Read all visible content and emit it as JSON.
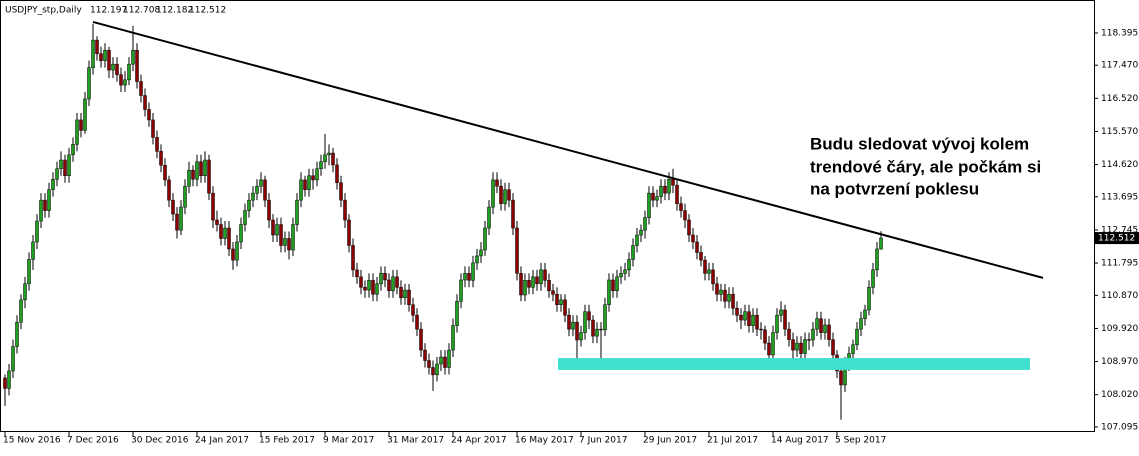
{
  "chart_data": {
    "type": "candlestick",
    "title": "USDJPY_stp,Daily",
    "ylim": [
      106.95,
      119.34
    ],
    "yticks": [
      118.395,
      {
        "value": 117.47,
        "label": "117.470"
      },
      {
        "value": 116.52,
        "label": "116.520"
      },
      {
        "value": 115.57,
        "label": "115.570"
      },
      {
        "value": 114.62,
        "label": "114.620"
      },
      113.695,
      112.745,
      111.795,
      {
        "value": 110.87,
        "label": "110.870"
      },
      {
        "value": 109.92,
        "label": "109.920"
      },
      {
        "value": 108.97,
        "label": "108.970"
      },
      {
        "value": 108.02,
        "label": "108.020"
      },
      107.095
    ],
    "x_labels": [
      "15 Nov 2016",
      "7 Dec 2016",
      "30 Dec 2016",
      "24 Jan 2017",
      "15 Feb 2017",
      "9 Mar 2017",
      "31 Mar 2017",
      "24 Apr 2017",
      "16 May 2017",
      "7 Jun 2017",
      "29 Jun 2017",
      "21 Jul 2017",
      "14 Aug 2017",
      "5 Sep 2017"
    ],
    "up_color": "#1f9e1f",
    "down_color": "#8b0000",
    "line_color": "#000000",
    "trendline": [
      118.71,
      111.37
    ],
    "support_zone": {
      "range": [
        108.73,
        109.07
      ],
      "color": "#40e0d0"
    },
    "annotation": [
      "Budu sledovat vývoj kolem",
      "trendové čáry, ale počkám si",
      "na potvrzení poklesu"
    ],
    "ohlc": [
      [
        108.5,
        108.6,
        107.7,
        108.2
      ],
      [
        108.2,
        108.9,
        108.0,
        108.7
      ],
      [
        108.7,
        109.6,
        108.5,
        109.4
      ],
      [
        109.4,
        110.3,
        109.2,
        110.1
      ],
      [
        110.1,
        110.9,
        109.9,
        110.74
      ],
      [
        110.74,
        111.4,
        110.5,
        111.2
      ],
      [
        111.2,
        112.1,
        111.0,
        111.9
      ],
      [
        111.9,
        112.6,
        111.6,
        112.4
      ],
      [
        112.4,
        113.2,
        112.2,
        113.0
      ],
      [
        113.0,
        113.8,
        112.8,
        113.6
      ],
      [
        113.6,
        113.8,
        113.1,
        113.3
      ],
      [
        113.3,
        114.1,
        113.1,
        113.9
      ],
      [
        113.9,
        114.4,
        113.7,
        114.2
      ],
      [
        114.2,
        114.7,
        114.0,
        114.5
      ],
      [
        114.5,
        115.0,
        114.3,
        114.75
      ],
      [
        114.75,
        114.9,
        114.1,
        114.3
      ],
      [
        114.3,
        115.1,
        114.1,
        114.9
      ],
      [
        114.9,
        115.4,
        114.7,
        115.2
      ],
      [
        115.2,
        116.1,
        115.0,
        115.9
      ],
      [
        115.9,
        116.1,
        115.4,
        115.6
      ],
      [
        115.6,
        116.7,
        115.5,
        116.5
      ],
      [
        116.5,
        117.6,
        116.3,
        117.4
      ],
      [
        117.4,
        118.66,
        117.2,
        118.19
      ],
      [
        118.19,
        118.3,
        117.6,
        117.8
      ],
      [
        117.8,
        118.0,
        117.4,
        117.6
      ],
      [
        117.6,
        118.1,
        117.4,
        117.9
      ],
      [
        117.9,
        118.0,
        117.1,
        117.33
      ],
      [
        117.33,
        117.7,
        117.1,
        117.5
      ],
      [
        117.5,
        117.7,
        117.0,
        117.2
      ],
      [
        117.2,
        117.4,
        116.7,
        116.9
      ],
      [
        116.9,
        117.3,
        116.7,
        117.05
      ],
      [
        117.05,
        117.7,
        116.9,
        117.5
      ],
      [
        117.5,
        118.6,
        117.3,
        117.9
      ],
      [
        117.9,
        118.1,
        116.8,
        117.0
      ],
      [
        117.0,
        117.2,
        116.4,
        116.6
      ],
      [
        116.6,
        116.8,
        116.0,
        116.2
      ],
      [
        116.2,
        116.4,
        115.7,
        115.9
      ],
      [
        115.9,
        116.1,
        115.2,
        115.4
      ],
      [
        115.4,
        115.6,
        114.8,
        115.0
      ],
      [
        115.0,
        115.2,
        114.4,
        114.6
      ],
      [
        114.6,
        114.8,
        114.0,
        114.18
      ],
      [
        114.18,
        114.3,
        113.4,
        113.6
      ],
      [
        113.6,
        113.8,
        113.0,
        113.2
      ],
      [
        113.2,
        113.4,
        112.5,
        112.74
      ],
      [
        112.74,
        113.6,
        112.6,
        113.4
      ],
      [
        113.4,
        114.2,
        113.2,
        114.0
      ],
      [
        114.0,
        114.7,
        113.8,
        114.46
      ],
      [
        114.46,
        114.6,
        114.0,
        114.2
      ],
      [
        114.2,
        114.9,
        114.0,
        114.7
      ],
      [
        114.7,
        114.9,
        114.1,
        114.3
      ],
      [
        114.3,
        115.0,
        114.1,
        114.75
      ],
      [
        114.75,
        114.9,
        113.6,
        113.8
      ],
      [
        113.8,
        114.0,
        112.8,
        113.03
      ],
      [
        113.03,
        113.3,
        112.7,
        112.9
      ],
      [
        112.9,
        113.1,
        112.3,
        112.5
      ],
      [
        112.5,
        113.0,
        112.3,
        112.8
      ],
      [
        112.8,
        113.0,
        112.0,
        112.2
      ],
      [
        112.2,
        112.4,
        111.6,
        111.88
      ],
      [
        111.88,
        112.6,
        111.7,
        112.4
      ],
      [
        112.4,
        113.1,
        112.2,
        112.9
      ],
      [
        112.9,
        113.5,
        112.7,
        113.3
      ],
      [
        113.3,
        113.8,
        113.1,
        113.6
      ],
      [
        113.6,
        114.0,
        113.4,
        113.8
      ],
      [
        113.8,
        114.2,
        113.6,
        114.0
      ],
      [
        114.0,
        114.4,
        113.8,
        114.18
      ],
      [
        114.18,
        114.3,
        113.4,
        113.6
      ],
      [
        113.6,
        113.8,
        112.8,
        113.03
      ],
      [
        113.03,
        113.2,
        112.4,
        112.6
      ],
      [
        112.6,
        113.1,
        112.4,
        112.9
      ],
      [
        112.9,
        113.1,
        112.1,
        112.3
      ],
      [
        112.3,
        112.7,
        112.1,
        112.5
      ],
      [
        112.5,
        112.7,
        111.9,
        112.17
      ],
      [
        112.17,
        113.1,
        112.0,
        112.9
      ],
      [
        112.9,
        113.8,
        112.7,
        113.6
      ],
      [
        113.6,
        114.4,
        113.4,
        114.18
      ],
      [
        114.18,
        114.3,
        113.7,
        113.9
      ],
      [
        113.9,
        114.5,
        113.7,
        114.3
      ],
      [
        114.3,
        114.5,
        113.9,
        114.18
      ],
      [
        114.18,
        114.7,
        114.0,
        114.5
      ],
      [
        114.5,
        114.9,
        114.3,
        114.7
      ],
      [
        114.7,
        115.5,
        114.5,
        114.9
      ],
      [
        114.9,
        115.2,
        114.6,
        114.95
      ],
      [
        114.95,
        115.1,
        114.4,
        114.61
      ],
      [
        114.61,
        114.8,
        113.9,
        114.1
      ],
      [
        114.1,
        114.3,
        113.4,
        113.6
      ],
      [
        113.6,
        113.8,
        112.8,
        113.03
      ],
      [
        113.03,
        113.2,
        112.1,
        112.3
      ],
      [
        112.3,
        112.5,
        111.4,
        111.6
      ],
      [
        111.6,
        111.8,
        111.2,
        111.4
      ],
      [
        111.4,
        111.6,
        110.9,
        111.1
      ],
      [
        111.1,
        111.3,
        110.8,
        111.02
      ],
      [
        111.02,
        111.5,
        110.8,
        111.3
      ],
      [
        111.3,
        111.5,
        110.7,
        110.9
      ],
      [
        110.9,
        111.4,
        110.7,
        111.2
      ],
      [
        111.2,
        111.7,
        111.0,
        111.5
      ],
      [
        111.5,
        111.7,
        111.1,
        111.31
      ],
      [
        111.31,
        111.5,
        110.8,
        111.0
      ],
      [
        111.0,
        111.6,
        110.8,
        111.4
      ],
      [
        111.4,
        111.6,
        110.9,
        111.1
      ],
      [
        111.1,
        111.3,
        110.6,
        110.8
      ],
      [
        110.8,
        111.2,
        110.6,
        111.02
      ],
      [
        111.02,
        111.2,
        110.4,
        110.6
      ],
      [
        110.6,
        110.8,
        110.1,
        110.3
      ],
      [
        110.3,
        110.5,
        109.7,
        109.9
      ],
      [
        109.9,
        110.1,
        109.1,
        109.3
      ],
      [
        109.3,
        109.5,
        108.8,
        109.0
      ],
      [
        109.0,
        109.2,
        108.6,
        108.8
      ],
      [
        108.8,
        109.0,
        108.13,
        108.59
      ],
      [
        108.59,
        109.1,
        108.4,
        108.9
      ],
      [
        108.9,
        109.3,
        108.7,
        109.1
      ],
      [
        109.1,
        109.3,
        108.6,
        108.8
      ],
      [
        108.8,
        109.5,
        108.6,
        109.3
      ],
      [
        109.3,
        110.2,
        109.1,
        110.0
      ],
      [
        110.0,
        110.9,
        109.8,
        110.7
      ],
      [
        110.7,
        111.5,
        110.5,
        111.31
      ],
      [
        111.31,
        111.7,
        111.1,
        111.5
      ],
      [
        111.5,
        111.7,
        111.1,
        111.3
      ],
      [
        111.3,
        112.0,
        111.1,
        111.8
      ],
      [
        111.8,
        112.2,
        111.6,
        112.0
      ],
      [
        112.0,
        112.4,
        111.8,
        112.17
      ],
      [
        112.17,
        113.0,
        112.0,
        112.8
      ],
      [
        112.8,
        113.6,
        112.6,
        113.4
      ],
      [
        113.4,
        114.4,
        113.2,
        114.18
      ],
      [
        114.18,
        114.4,
        113.8,
        114.0
      ],
      [
        114.0,
        114.2,
        113.3,
        113.5
      ],
      [
        113.5,
        114.1,
        113.3,
        113.9
      ],
      [
        113.9,
        114.1,
        113.4,
        113.6
      ],
      [
        113.6,
        113.8,
        112.6,
        112.8
      ],
      [
        112.8,
        113.0,
        111.3,
        111.5
      ],
      [
        111.5,
        111.7,
        110.7,
        110.88
      ],
      [
        110.88,
        111.5,
        110.7,
        111.3
      ],
      [
        111.3,
        111.5,
        110.9,
        111.1
      ],
      [
        111.1,
        111.6,
        110.9,
        111.4
      ],
      [
        111.4,
        111.6,
        111.0,
        111.2
      ],
      [
        111.2,
        111.8,
        111.0,
        111.6
      ],
      [
        111.6,
        111.8,
        111.1,
        111.3
      ],
      [
        111.3,
        111.5,
        110.8,
        111.0
      ],
      [
        111.0,
        111.2,
        110.7,
        110.9
      ],
      [
        110.9,
        111.1,
        110.4,
        110.6
      ],
      [
        110.6,
        110.9,
        110.4,
        110.74
      ],
      [
        110.74,
        110.9,
        110.1,
        110.3
      ],
      [
        110.3,
        110.5,
        109.7,
        109.9
      ],
      [
        109.9,
        110.3,
        109.7,
        110.1
      ],
      [
        110.1,
        110.3,
        109.0,
        109.59
      ],
      [
        109.59,
        110.0,
        109.4,
        109.8
      ],
      [
        109.8,
        110.6,
        109.6,
        110.4
      ],
      [
        110.4,
        110.6,
        109.9,
        110.16
      ],
      [
        110.16,
        110.3,
        109.5,
        109.7
      ],
      [
        109.7,
        110.1,
        109.5,
        109.9
      ],
      [
        109.9,
        110.1,
        108.95,
        109.88
      ],
      [
        109.88,
        110.8,
        109.7,
        110.6
      ],
      [
        110.6,
        111.5,
        110.4,
        111.31
      ],
      [
        111.31,
        111.5,
        110.8,
        111.0
      ],
      [
        111.0,
        111.6,
        110.8,
        111.4
      ],
      [
        111.4,
        111.7,
        111.2,
        111.5
      ],
      [
        111.5,
        111.8,
        111.3,
        111.6
      ],
      [
        111.6,
        112.1,
        111.4,
        111.9
      ],
      [
        111.9,
        112.5,
        111.7,
        112.3
      ],
      [
        112.3,
        112.8,
        112.1,
        112.6
      ],
      [
        112.6,
        112.9,
        112.4,
        112.74
      ],
      [
        112.74,
        113.3,
        112.5,
        113.1
      ],
      [
        113.1,
        114.0,
        112.9,
        113.8
      ],
      [
        113.8,
        114.0,
        113.4,
        113.6
      ],
      [
        113.6,
        113.9,
        113.4,
        113.7
      ],
      [
        113.7,
        114.2,
        113.5,
        114.0
      ],
      [
        114.0,
        114.2,
        113.6,
        113.8
      ],
      [
        113.8,
        114.4,
        113.6,
        114.2
      ],
      [
        114.2,
        114.5,
        113.8,
        114.03
      ],
      [
        114.03,
        114.2,
        113.3,
        113.5
      ],
      [
        113.5,
        113.7,
        113.1,
        113.3
      ],
      [
        113.3,
        113.5,
        112.8,
        113.03
      ],
      [
        113.03,
        113.2,
        112.4,
        112.6
      ],
      [
        112.6,
        112.8,
        112.2,
        112.4
      ],
      [
        112.4,
        112.6,
        111.9,
        112.1
      ],
      [
        112.1,
        112.3,
        111.7,
        111.88
      ],
      [
        111.88,
        112.0,
        111.3,
        111.5
      ],
      [
        111.5,
        111.8,
        111.3,
        111.6
      ],
      [
        111.6,
        111.8,
        111.0,
        111.2
      ],
      [
        111.2,
        111.4,
        110.7,
        110.9
      ],
      [
        110.9,
        111.2,
        110.7,
        111.02
      ],
      [
        111.02,
        111.2,
        110.5,
        110.7
      ],
      [
        110.7,
        111.1,
        110.5,
        110.9
      ],
      [
        110.9,
        111.1,
        110.3,
        110.5
      ],
      [
        110.5,
        110.7,
        110.1,
        110.3
      ],
      [
        110.3,
        110.5,
        109.9,
        110.16
      ],
      [
        110.16,
        110.6,
        110.0,
        110.4
      ],
      [
        110.4,
        110.6,
        109.8,
        110.0
      ],
      [
        110.0,
        110.5,
        109.8,
        110.3
      ],
      [
        110.3,
        110.5,
        109.7,
        109.9
      ],
      [
        109.9,
        110.1,
        109.6,
        109.88
      ],
      [
        109.88,
        110.0,
        109.3,
        109.5
      ],
      [
        109.5,
        109.7,
        108.9,
        109.16
      ],
      [
        109.16,
        110.0,
        109.0,
        109.8
      ],
      [
        109.8,
        110.5,
        109.6,
        110.3
      ],
      [
        110.3,
        110.7,
        110.1,
        110.45
      ],
      [
        110.45,
        110.6,
        109.7,
        109.9
      ],
      [
        109.9,
        110.1,
        109.4,
        109.6
      ],
      [
        109.6,
        109.8,
        108.9,
        109.3
      ],
      [
        109.3,
        109.7,
        109.1,
        109.5
      ],
      [
        109.5,
        109.7,
        108.9,
        109.2
      ],
      [
        109.2,
        109.8,
        109.0,
        109.6
      ],
      [
        109.6,
        109.8,
        109.3,
        109.59
      ],
      [
        109.59,
        110.1,
        109.4,
        109.9
      ],
      [
        109.9,
        110.4,
        109.7,
        110.2
      ],
      [
        110.2,
        110.4,
        109.6,
        109.8
      ],
      [
        109.8,
        110.2,
        109.6,
        110.02
      ],
      [
        110.02,
        110.2,
        109.4,
        109.6
      ],
      [
        109.6,
        109.8,
        108.9,
        109.16
      ],
      [
        109.16,
        109.3,
        108.5,
        108.7
      ],
      [
        108.7,
        108.9,
        107.3,
        108.3
      ],
      [
        108.3,
        109.1,
        108.1,
        108.9
      ],
      [
        108.9,
        109.4,
        108.7,
        109.2
      ],
      [
        109.2,
        109.6,
        109.0,
        109.45
      ],
      [
        109.45,
        110.1,
        109.3,
        109.9
      ],
      [
        109.9,
        110.4,
        109.7,
        110.2
      ],
      [
        110.2,
        110.6,
        110.0,
        110.45
      ],
      [
        110.45,
        111.3,
        110.3,
        111.1
      ],
      [
        111.1,
        111.8,
        110.9,
        111.6
      ],
      [
        111.6,
        112.4,
        111.4,
        112.2
      ],
      [
        112.197,
        112.708,
        112.182,
        112.512
      ]
    ]
  }
}
